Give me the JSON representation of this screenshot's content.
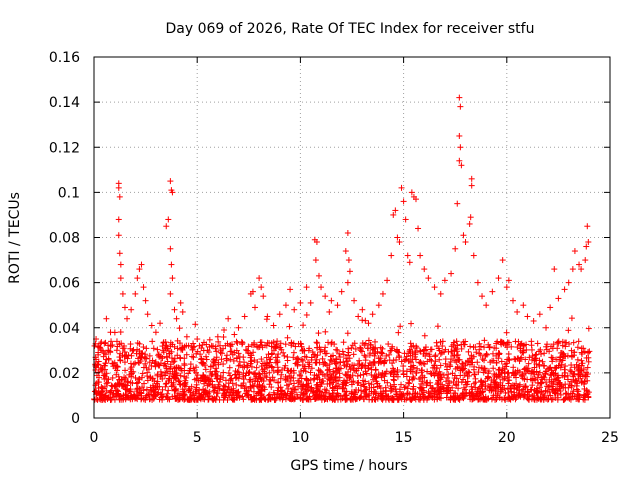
{
  "chart_data": {
    "type": "scatter",
    "title": "Day 069 of 2026, Rate Of TEC Index for receiver stfu",
    "xlabel": "GPS time / hours",
    "ylabel": "ROTI / TECUs",
    "xlim": [
      0,
      25
    ],
    "ylim": [
      0,
      0.16
    ],
    "xticks": [
      0,
      5,
      10,
      15,
      20,
      25
    ],
    "yticks": [
      0,
      0.02,
      0.04,
      0.06,
      0.08,
      0.1,
      0.12,
      0.14,
      0.16
    ],
    "xtick_labels": [
      "0",
      "5",
      "10",
      "15",
      "20",
      "25"
    ],
    "ytick_labels": [
      "0",
      "0.02",
      "0.04",
      "0.06",
      "0.08",
      "0.1",
      "0.12",
      "0.14",
      "0.16"
    ],
    "grid": true,
    "marker": "plus",
    "color": "#ff0000",
    "series": [
      {
        "name": "ROTI",
        "points": [
          [
            0.1,
            0.035
          ],
          [
            0.2,
            0.028
          ],
          [
            0.3,
            0.031
          ],
          [
            0.5,
            0.033
          ],
          [
            0.6,
            0.044
          ],
          [
            0.8,
            0.038
          ],
          [
            1.2,
            0.104
          ],
          [
            1.2,
            0.102
          ],
          [
            1.25,
            0.098
          ],
          [
            1.2,
            0.088
          ],
          [
            1.2,
            0.081
          ],
          [
            1.25,
            0.073
          ],
          [
            1.3,
            0.068
          ],
          [
            1.3,
            0.062
          ],
          [
            1.4,
            0.055
          ],
          [
            1.5,
            0.049
          ],
          [
            1.6,
            0.044
          ],
          [
            1.8,
            0.048
          ],
          [
            2.0,
            0.055
          ],
          [
            2.1,
            0.062
          ],
          [
            2.2,
            0.066
          ],
          [
            2.3,
            0.068
          ],
          [
            2.4,
            0.058
          ],
          [
            2.5,
            0.052
          ],
          [
            2.6,
            0.046
          ],
          [
            2.8,
            0.041
          ],
          [
            3.0,
            0.038
          ],
          [
            3.2,
            0.042
          ],
          [
            3.5,
            0.085
          ],
          [
            3.6,
            0.088
          ],
          [
            3.7,
            0.105
          ],
          [
            3.75,
            0.101
          ],
          [
            3.8,
            0.1
          ],
          [
            3.7,
            0.075
          ],
          [
            3.75,
            0.068
          ],
          [
            3.8,
            0.062
          ],
          [
            3.7,
            0.055
          ],
          [
            3.9,
            0.048
          ],
          [
            4.0,
            0.044
          ],
          [
            4.2,
            0.051
          ],
          [
            4.3,
            0.047
          ],
          [
            4.5,
            0.036
          ],
          [
            4.8,
            0.033
          ],
          [
            5.0,
            0.035
          ],
          [
            5.2,
            0.031
          ],
          [
            5.5,
            0.03
          ],
          [
            5.7,
            0.032
          ],
          [
            6.0,
            0.036
          ],
          [
            6.3,
            0.039
          ],
          [
            6.5,
            0.044
          ],
          [
            6.8,
            0.037
          ],
          [
            7.0,
            0.04
          ],
          [
            7.3,
            0.045
          ],
          [
            7.6,
            0.055
          ],
          [
            7.7,
            0.056
          ],
          [
            7.8,
            0.049
          ],
          [
            8.0,
            0.062
          ],
          [
            8.1,
            0.058
          ],
          [
            8.2,
            0.054
          ],
          [
            8.4,
            0.045
          ],
          [
            8.7,
            0.041
          ],
          [
            9.0,
            0.046
          ],
          [
            9.3,
            0.05
          ],
          [
            9.5,
            0.057
          ],
          [
            9.7,
            0.048
          ],
          [
            10.0,
            0.051
          ],
          [
            10.3,
            0.058
          ],
          [
            10.5,
            0.051
          ],
          [
            10.7,
            0.079
          ],
          [
            10.8,
            0.078
          ],
          [
            10.75,
            0.07
          ],
          [
            10.9,
            0.063
          ],
          [
            11.0,
            0.058
          ],
          [
            11.2,
            0.054
          ],
          [
            11.4,
            0.047
          ],
          [
            11.5,
            0.052
          ],
          [
            11.8,
            0.05
          ],
          [
            12.0,
            0.056
          ],
          [
            12.2,
            0.074
          ],
          [
            12.3,
            0.082
          ],
          [
            12.35,
            0.07
          ],
          [
            12.4,
            0.065
          ],
          [
            12.3,
            0.06
          ],
          [
            12.6,
            0.052
          ],
          [
            12.8,
            0.045
          ],
          [
            13.0,
            0.048
          ],
          [
            13.3,
            0.042
          ],
          [
            13.5,
            0.046
          ],
          [
            13.8,
            0.05
          ],
          [
            14.0,
            0.055
          ],
          [
            14.2,
            0.061
          ],
          [
            14.4,
            0.072
          ],
          [
            14.5,
            0.09
          ],
          [
            14.6,
            0.092
          ],
          [
            14.7,
            0.08
          ],
          [
            14.8,
            0.078
          ],
          [
            14.9,
            0.102
          ],
          [
            15.0,
            0.096
          ],
          [
            15.1,
            0.088
          ],
          [
            15.2,
            0.072
          ],
          [
            15.3,
            0.069
          ],
          [
            15.4,
            0.1
          ],
          [
            15.5,
            0.098
          ],
          [
            15.6,
            0.097
          ],
          [
            15.7,
            0.084
          ],
          [
            15.8,
            0.072
          ],
          [
            16.0,
            0.066
          ],
          [
            16.2,
            0.062
          ],
          [
            16.5,
            0.058
          ],
          [
            16.8,
            0.055
          ],
          [
            17.0,
            0.061
          ],
          [
            17.3,
            0.064
          ],
          [
            17.5,
            0.075
          ],
          [
            17.6,
            0.095
          ],
          [
            17.7,
            0.142
          ],
          [
            17.75,
            0.138
          ],
          [
            17.7,
            0.125
          ],
          [
            17.75,
            0.12
          ],
          [
            17.7,
            0.114
          ],
          [
            17.8,
            0.112
          ],
          [
            17.9,
            0.081
          ],
          [
            18.0,
            0.078
          ],
          [
            18.2,
            0.086
          ],
          [
            18.25,
            0.089
          ],
          [
            18.3,
            0.106
          ],
          [
            18.3,
            0.103
          ],
          [
            18.4,
            0.072
          ],
          [
            18.6,
            0.06
          ],
          [
            18.8,
            0.054
          ],
          [
            19.0,
            0.05
          ],
          [
            19.3,
            0.056
          ],
          [
            19.6,
            0.062
          ],
          [
            19.8,
            0.07
          ],
          [
            20.0,
            0.058
          ],
          [
            20.1,
            0.061
          ],
          [
            20.3,
            0.052
          ],
          [
            20.5,
            0.047
          ],
          [
            20.8,
            0.05
          ],
          [
            21.0,
            0.045
          ],
          [
            21.3,
            0.043
          ],
          [
            21.6,
            0.046
          ],
          [
            21.9,
            0.04
          ],
          [
            22.1,
            0.049
          ],
          [
            22.3,
            0.066
          ],
          [
            22.5,
            0.053
          ],
          [
            22.8,
            0.057
          ],
          [
            23.0,
            0.06
          ],
          [
            23.2,
            0.066
          ],
          [
            23.3,
            0.074
          ],
          [
            23.5,
            0.068
          ],
          [
            23.6,
            0.066
          ],
          [
            23.8,
            0.07
          ],
          [
            23.85,
            0.076
          ],
          [
            23.9,
            0.085
          ],
          [
            23.95,
            0.078
          ]
        ]
      }
    ]
  }
}
